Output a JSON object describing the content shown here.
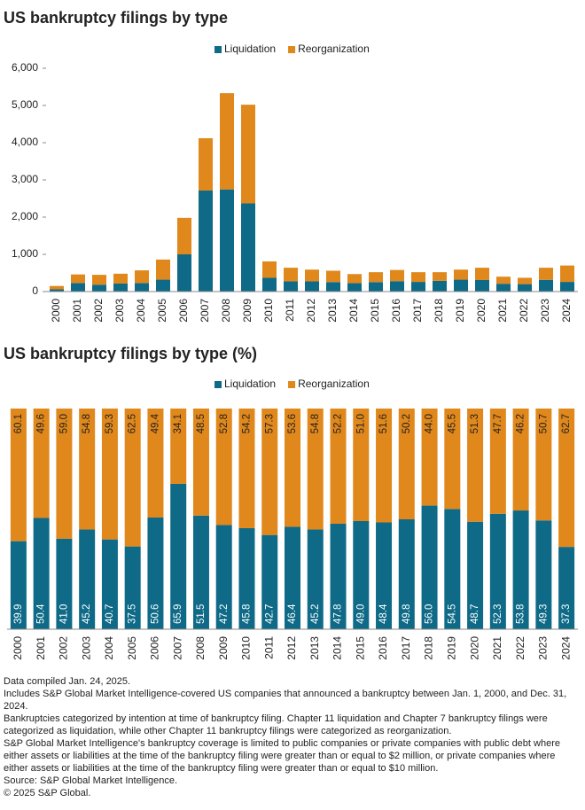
{
  "chart_data": [
    {
      "type": "stacked-bar",
      "title": "US bankruptcy filings by type",
      "categories": [
        "2000",
        "2001",
        "2002",
        "2003",
        "2004",
        "2005",
        "2006",
        "2007",
        "2008",
        "2009",
        "2010",
        "2011",
        "2012",
        "2013",
        "2014",
        "2015",
        "2016",
        "2017",
        "2018",
        "2019",
        "2020",
        "2021",
        "2022",
        "2023",
        "2024"
      ],
      "series": [
        {
          "name": "Liquidation",
          "color": "#0e6a87",
          "values": [
            60,
            230,
            185,
            215,
            230,
            320,
            1000,
            2715,
            2745,
            2370,
            370,
            275,
            275,
            255,
            225,
            255,
            280,
            260,
            290,
            320,
            310,
            210,
            200,
            315,
            260
          ]
        },
        {
          "name": "Reorganization",
          "color": "#e0881c",
          "values": [
            90,
            230,
            265,
            265,
            340,
            540,
            980,
            1405,
            2585,
            2650,
            440,
            365,
            315,
            305,
            245,
            265,
            300,
            260,
            230,
            270,
            330,
            190,
            170,
            325,
            440
          ]
        }
      ],
      "ylim": [
        0,
        6000
      ],
      "yticks": [
        0,
        {
          "value": 1000,
          "label": "1,000"
        },
        {
          "value": 2000,
          "label": "2,000"
        },
        {
          "value": 3000,
          "label": "3,000"
        },
        {
          "value": 4000,
          "label": "4,000"
        },
        {
          "value": 5000,
          "label": "5,000"
        },
        {
          "value": 6000,
          "label": "6,000"
        }
      ],
      "legend": "top"
    },
    {
      "type": "stacked-percent-bar",
      "title": "US bankruptcy filings by type (%)",
      "categories": [
        "2000",
        "2001",
        "2002",
        "2003",
        "2004",
        "2005",
        "2006",
        "2007",
        "2008",
        "2009",
        "2010",
        "2011",
        "2012",
        "2013",
        "2014",
        "2015",
        "2016",
        "2017",
        "2018",
        "2019",
        "2020",
        "2021",
        "2022",
        "2023",
        "2024"
      ],
      "series": [
        {
          "name": "Liquidation",
          "color": "#0e6a87",
          "values": [
            39.9,
            50.4,
            41.0,
            45.2,
            40.7,
            37.5,
            50.6,
            65.9,
            51.5,
            47.2,
            45.8,
            42.7,
            46.4,
            45.2,
            47.8,
            49.0,
            48.4,
            49.8,
            56.0,
            54.5,
            48.7,
            52.3,
            53.8,
            49.3,
            37.3
          ],
          "value_labels": [
            "39.9",
            "50.4",
            "41.0",
            "45.2",
            "40.7",
            "37.5",
            "50.6",
            "65.9",
            "51.5",
            "47.2",
            "45.8",
            "42.7",
            "46.4",
            "45.2",
            "47.8",
            "49.0",
            "48.4",
            "49.8",
            "56.0",
            "54.5",
            "48.7",
            "52.3",
            "53.8",
            "49.3",
            "37.3"
          ]
        },
        {
          "name": "Reorganization",
          "color": "#e0881c",
          "values": [
            60.1,
            49.6,
            59.0,
            54.8,
            59.3,
            62.5,
            49.4,
            34.1,
            48.5,
            52.8,
            54.2,
            57.3,
            53.6,
            54.8,
            52.2,
            51.0,
            51.6,
            50.2,
            44.0,
            45.5,
            51.3,
            47.7,
            46.2,
            50.7,
            62.7
          ],
          "value_labels": [
            "60.1",
            "49.6",
            "59.0",
            "54.8",
            "59.3",
            "62.5",
            "49.4",
            "34.1",
            "48.5",
            "52.8",
            "54.2",
            "57.3",
            "53.6",
            "54.8",
            "52.2",
            "51.0",
            "51.6",
            "50.2",
            "44.0",
            "45.5",
            "51.3",
            "47.7",
            "46.2",
            "50.7",
            "62.7"
          ]
        }
      ],
      "ylim": [
        0,
        100
      ],
      "legend": "top"
    }
  ],
  "notes": [
    "Data compiled Jan. 24, 2025.",
    "Includes S&P Global Market Intelligence-covered US companies that announced a bankruptcy between Jan. 1, 2000, and Dec. 31, 2024.",
    "Bankruptcies categorized by intention at time of bankruptcy filing. Chapter 11 liquidation and Chapter 7 bankruptcy filings were categorized as liquidation, while other Chapter 11 bankruptcy filings were categorized as reorganization.",
    "S&P Global Market Intelligence's bankruptcy coverage is limited to public companies or private companies with public debt where either assets or liabilities at the time of the bankruptcy filing were greater than or equal to $2 million, or private companies where either assets or liabilities at the time of the bankruptcy filing were greater than or equal to $10 million.",
    "Source: S&P Global Market Intelligence.",
    "© 2025 S&P Global."
  ]
}
